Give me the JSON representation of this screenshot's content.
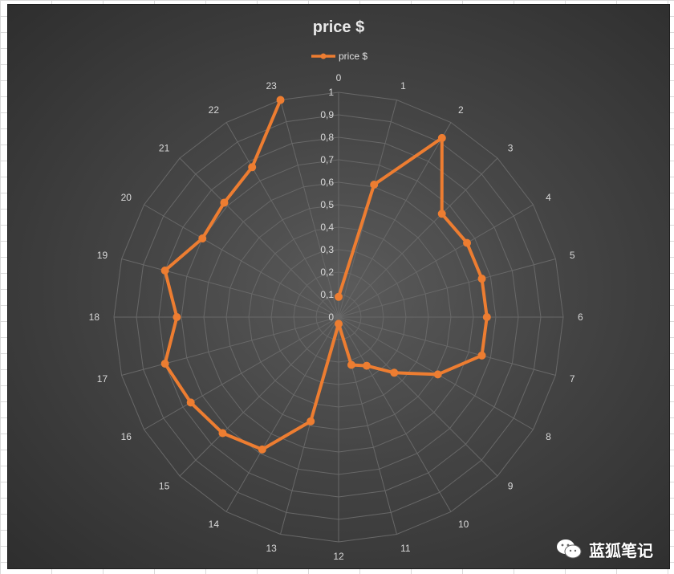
{
  "chart_data": {
    "type": "radar",
    "title": "price $",
    "legend": {
      "position": "top",
      "entries": [
        "price $"
      ]
    },
    "categories": [
      "0",
      "1",
      "2",
      "3",
      "4",
      "5",
      "6",
      "7",
      "8",
      "9",
      "10",
      "11",
      "12",
      "13",
      "14",
      "15",
      "16",
      "17",
      "18",
      "19",
      "20",
      "21",
      "22",
      "23"
    ],
    "series": [
      {
        "name": "price $",
        "color": "#ed7d31",
        "values": [
          0.09,
          0.61,
          0.92,
          0.65,
          0.66,
          0.66,
          0.66,
          0.66,
          0.51,
          0.35,
          0.25,
          0.22,
          0.03,
          0.48,
          0.68,
          0.73,
          0.76,
          0.8,
          0.72,
          0.8,
          0.7,
          0.72,
          0.77,
          1.0
        ]
      }
    ],
    "radial_axis": {
      "min": 0,
      "max": 1,
      "step": 0.1,
      "tick_labels": [
        "0",
        "0,1",
        "0,2",
        "0,3",
        "0,4",
        "0,5",
        "0,6",
        "0,7",
        "0,8",
        "0,9",
        "1"
      ]
    },
    "grid": true
  },
  "watermark": {
    "text": "蓝狐笔记",
    "icon": "wechat-icon"
  }
}
